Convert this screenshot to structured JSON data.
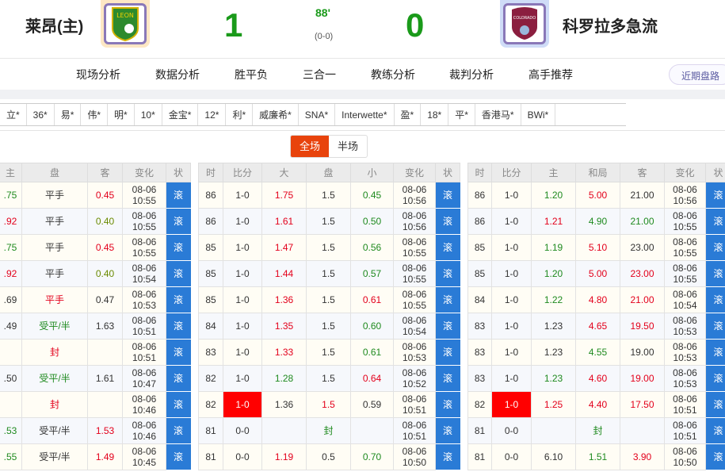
{
  "match": {
    "home": "莱昂(主)",
    "away": "科罗拉多急流",
    "home_score": "1",
    "away_score": "0",
    "minute": "88'",
    "half_score": "(0-0)",
    "home_logo_text": "LEON",
    "away_logo_text": "COLORADO"
  },
  "nav": {
    "items": [
      "现场分析",
      "数据分析",
      "胜平负",
      "三合一",
      "教练分析",
      "裁判分析",
      "高手推荐"
    ],
    "recent_button": "近期盘路"
  },
  "bookmakers": [
    "立*",
    "36*",
    "易*",
    "伟*",
    "明*",
    "10*",
    "金宝*",
    "12*",
    "利*",
    "威廉希*",
    "SNA*",
    "Interwette*",
    "盈*",
    "18*",
    "平*",
    "香港马*",
    "BWi*"
  ],
  "toggle": {
    "full": "全场",
    "half": "半场",
    "selected": "全场"
  },
  "colors": {
    "accent": "#e8430c",
    "status_blue": "#2a7bd6",
    "up_red": "#e3001b",
    "down_green": "#1f8a1f"
  },
  "handicap_table": {
    "headers": [
      "主",
      "盘",
      "客",
      "变化",
      "状"
    ],
    "rows": [
      [
        {
          "v": ".75",
          "c": "green"
        },
        {
          "v": "平手"
        },
        {
          "v": "0.45",
          "c": "red"
        },
        "08-06 10:55",
        "滚"
      ],
      [
        {
          "v": ".92",
          "c": "red"
        },
        {
          "v": "平手"
        },
        {
          "v": "0.40",
          "c": "olive"
        },
        "08-06 10:55",
        "滚"
      ],
      [
        {
          "v": ".75",
          "c": "green"
        },
        {
          "v": "平手"
        },
        {
          "v": "0.45",
          "c": "red"
        },
        "08-06 10:55",
        "滚"
      ],
      [
        {
          "v": ".92",
          "c": "red"
        },
        {
          "v": "平手"
        },
        {
          "v": "0.40",
          "c": "olive"
        },
        "08-06 10:54",
        "滚"
      ],
      [
        {
          "v": ".69"
        },
        {
          "v": "平手",
          "c": "red"
        },
        {
          "v": "0.47"
        },
        "08-06 10:53",
        "滚"
      ],
      [
        {
          "v": ".49"
        },
        {
          "v": "受平/半",
          "c": "green"
        },
        {
          "v": "1.63"
        },
        "08-06 10:51",
        "滚"
      ],
      [
        {
          "v": ""
        },
        {
          "v": "封",
          "c": "red"
        },
        {
          "v": ""
        },
        "08-06 10:51",
        "滚"
      ],
      [
        {
          "v": ".50"
        },
        {
          "v": "受平/半",
          "c": "green"
        },
        {
          "v": "1.61"
        },
        "08-06 10:47",
        "滚"
      ],
      [
        {
          "v": ""
        },
        {
          "v": "封",
          "c": "red"
        },
        {
          "v": ""
        },
        "08-06 10:46",
        "滚"
      ],
      [
        {
          "v": ".53",
          "c": "green"
        },
        {
          "v": "受平/半"
        },
        {
          "v": "1.53",
          "c": "red"
        },
        "08-06 10:46",
        "滚"
      ],
      [
        {
          "v": ".55",
          "c": "green"
        },
        {
          "v": "受平/半"
        },
        {
          "v": "1.49",
          "c": "red"
        },
        "08-06 10:45",
        "滚"
      ]
    ]
  },
  "ou_table": {
    "headers": [
      "时",
      "比分",
      "大",
      "盘",
      "小",
      "变化",
      "状"
    ],
    "rows": [
      [
        "86",
        {
          "v": "1-0"
        },
        {
          "v": "1.75",
          "c": "red"
        },
        {
          "v": "1.5"
        },
        {
          "v": "0.45",
          "c": "green"
        },
        "08-06 10:56",
        "滚"
      ],
      [
        "86",
        {
          "v": "1-0"
        },
        {
          "v": "1.61",
          "c": "red"
        },
        {
          "v": "1.5"
        },
        {
          "v": "0.50",
          "c": "green"
        },
        "08-06 10:56",
        "滚"
      ],
      [
        "85",
        {
          "v": "1-0"
        },
        {
          "v": "1.47",
          "c": "red"
        },
        {
          "v": "1.5"
        },
        {
          "v": "0.56",
          "c": "green"
        },
        "08-06 10:55",
        "滚"
      ],
      [
        "85",
        {
          "v": "1-0"
        },
        {
          "v": "1.44",
          "c": "red"
        },
        {
          "v": "1.5"
        },
        {
          "v": "0.57",
          "c": "green"
        },
        "08-06 10:55",
        "滚"
      ],
      [
        "85",
        {
          "v": "1-0"
        },
        {
          "v": "1.36",
          "c": "red"
        },
        {
          "v": "1.5"
        },
        {
          "v": "0.61",
          "c": "red"
        },
        "08-06 10:55",
        "滚"
      ],
      [
        "84",
        {
          "v": "1-0"
        },
        {
          "v": "1.35",
          "c": "red"
        },
        {
          "v": "1.5"
        },
        {
          "v": "0.60",
          "c": "green"
        },
        "08-06 10:54",
        "滚"
      ],
      [
        "83",
        {
          "v": "1-0"
        },
        {
          "v": "1.33",
          "c": "red"
        },
        {
          "v": "1.5"
        },
        {
          "v": "0.61",
          "c": "green"
        },
        "08-06 10:53",
        "滚"
      ],
      [
        "82",
        {
          "v": "1-0"
        },
        {
          "v": "1.28",
          "c": "green"
        },
        {
          "v": "1.5"
        },
        {
          "v": "0.64",
          "c": "red"
        },
        "08-06 10:52",
        "滚"
      ],
      [
        "82",
        {
          "v": "1-0",
          "hl": true
        },
        {
          "v": "1.36"
        },
        {
          "v": "1.5",
          "c": "red"
        },
        {
          "v": "0.59"
        },
        "08-06 10:51",
        "滚"
      ],
      [
        "81",
        {
          "v": "0-0"
        },
        {
          "v": ""
        },
        {
          "v": "封",
          "c": "green"
        },
        {
          "v": ""
        },
        "08-06 10:51",
        "滚"
      ],
      [
        "81",
        {
          "v": "0-0"
        },
        {
          "v": "1.19",
          "c": "red"
        },
        {
          "v": "0.5"
        },
        {
          "v": "0.70",
          "c": "green"
        },
        "08-06 10:50",
        "滚"
      ]
    ]
  },
  "euro_table": {
    "headers": [
      "时",
      "比分",
      "主",
      "和局",
      "客",
      "变化",
      "状"
    ],
    "rows": [
      [
        "86",
        {
          "v": "1-0"
        },
        {
          "v": "1.20",
          "c": "green"
        },
        {
          "v": "5.00",
          "c": "red"
        },
        {
          "v": "21.00"
        },
        "08-06 10:56",
        "滚"
      ],
      [
        "86",
        {
          "v": "1-0"
        },
        {
          "v": "1.21",
          "c": "red"
        },
        {
          "v": "4.90",
          "c": "green"
        },
        {
          "v": "21.00",
          "c": "green"
        },
        "08-06 10:55",
        "滚"
      ],
      [
        "85",
        {
          "v": "1-0"
        },
        {
          "v": "1.19",
          "c": "green"
        },
        {
          "v": "5.10",
          "c": "red"
        },
        {
          "v": "23.00"
        },
        "08-06 10:55",
        "滚"
      ],
      [
        "85",
        {
          "v": "1-0"
        },
        {
          "v": "1.20",
          "c": "green"
        },
        {
          "v": "5.00",
          "c": "red"
        },
        {
          "v": "23.00",
          "c": "red"
        },
        "08-06 10:55",
        "滚"
      ],
      [
        "84",
        {
          "v": "1-0"
        },
        {
          "v": "1.22",
          "c": "green"
        },
        {
          "v": "4.80",
          "c": "red"
        },
        {
          "v": "21.00",
          "c": "red"
        },
        "08-06 10:54",
        "滚"
      ],
      [
        "83",
        {
          "v": "1-0"
        },
        {
          "v": "1.23"
        },
        {
          "v": "4.65",
          "c": "red"
        },
        {
          "v": "19.50",
          "c": "red"
        },
        "08-06 10:53",
        "滚"
      ],
      [
        "83",
        {
          "v": "1-0"
        },
        {
          "v": "1.23"
        },
        {
          "v": "4.55",
          "c": "green"
        },
        {
          "v": "19.00"
        },
        "08-06 10:53",
        "滚"
      ],
      [
        "83",
        {
          "v": "1-0"
        },
        {
          "v": "1.23",
          "c": "green"
        },
        {
          "v": "4.60",
          "c": "red"
        },
        {
          "v": "19.00",
          "c": "red"
        },
        "08-06 10:53",
        "滚"
      ],
      [
        "82",
        {
          "v": "1-0",
          "hl": true
        },
        {
          "v": "1.25",
          "c": "red"
        },
        {
          "v": "4.40",
          "c": "red"
        },
        {
          "v": "17.50",
          "c": "red"
        },
        "08-06 10:51",
        "滚"
      ],
      [
        "81",
        {
          "v": "0-0"
        },
        {
          "v": ""
        },
        {
          "v": "封",
          "c": "green"
        },
        {
          "v": ""
        },
        "08-06 10:51",
        "滚"
      ],
      [
        "81",
        {
          "v": "0-0"
        },
        {
          "v": "6.10"
        },
        {
          "v": "1.51",
          "c": "green"
        },
        {
          "v": "3.90",
          "c": "red"
        },
        "08-06 10:50",
        "滚"
      ]
    ]
  }
}
